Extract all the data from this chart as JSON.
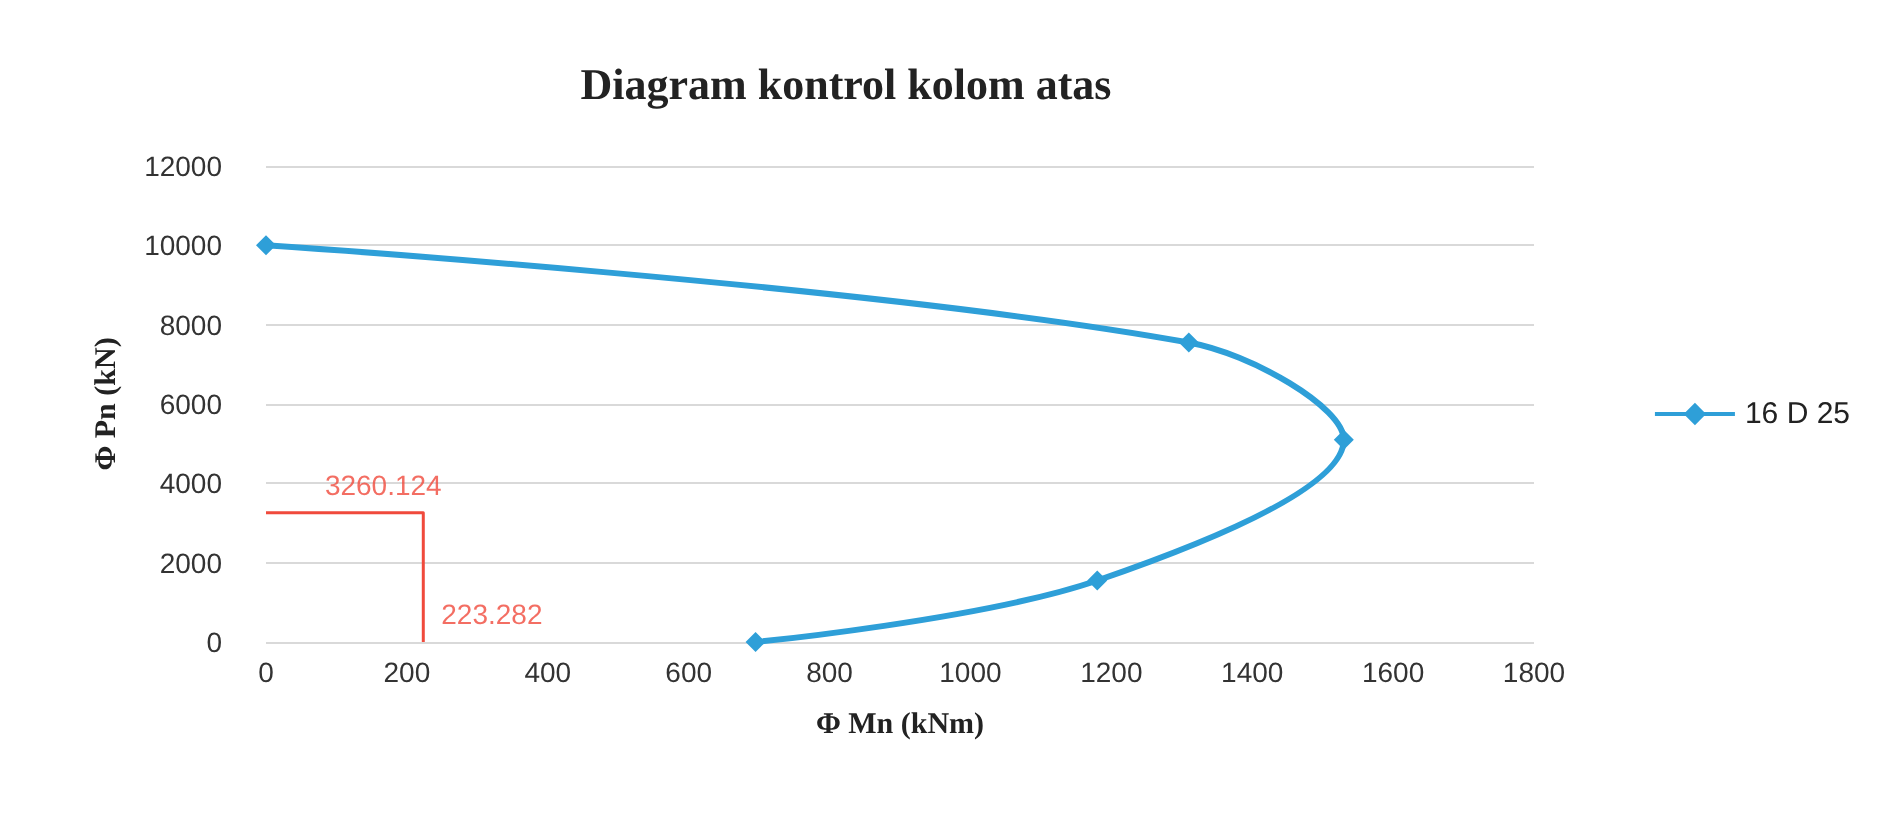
{
  "chart_data": {
    "type": "line",
    "title": "Diagram kontrol kolom atas",
    "xlabel": "Φ Mn (kNm)",
    "ylabel": "Φ Pn (kN)",
    "xlim": [
      0,
      1800
    ],
    "xticks": [
      0,
      200,
      400,
      600,
      800,
      1000,
      1200,
      1400,
      1600,
      1800
    ],
    "ylim": [
      0,
      12000
    ],
    "yticks": [
      0,
      2000,
      4000,
      6000,
      8000,
      10000,
      12000
    ],
    "grid": "y",
    "legend": "right",
    "marker": "diamond",
    "series": [
      {
        "name": "16 D 25",
        "color": "#2e9fd8",
        "x": [
          0,
          1310,
          1530,
          1180,
          695
        ],
        "values": [
          10000,
          7550,
          5100,
          1550,
          0
        ]
      },
      {
        "color": "#f04a3c",
        "marker": "none",
        "x": [
          0,
          223.282,
          223.282
        ],
        "values": [
          3260.124,
          3260.124,
          0
        ]
      }
    ],
    "annotations": [
      {
        "text": "3260.124",
        "x": 223.282,
        "y": 3260.124
      },
      {
        "text": "223.282",
        "x": 223.282,
        "y": 0
      }
    ]
  }
}
